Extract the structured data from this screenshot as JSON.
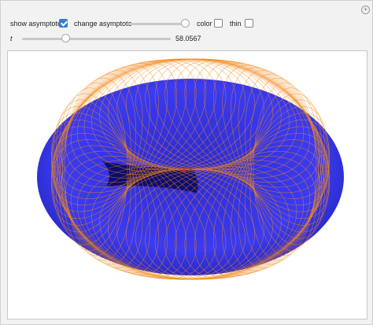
{
  "controls": {
    "show_asymptote": {
      "label": "show asymptote",
      "checked": true
    },
    "change_asymptote": {
      "label": "change asymptote"
    },
    "color": {
      "label": "color",
      "checked": false
    },
    "thin": {
      "label": "thin",
      "checked": false
    },
    "t": {
      "label": "t",
      "value": "58.0567"
    }
  }
}
